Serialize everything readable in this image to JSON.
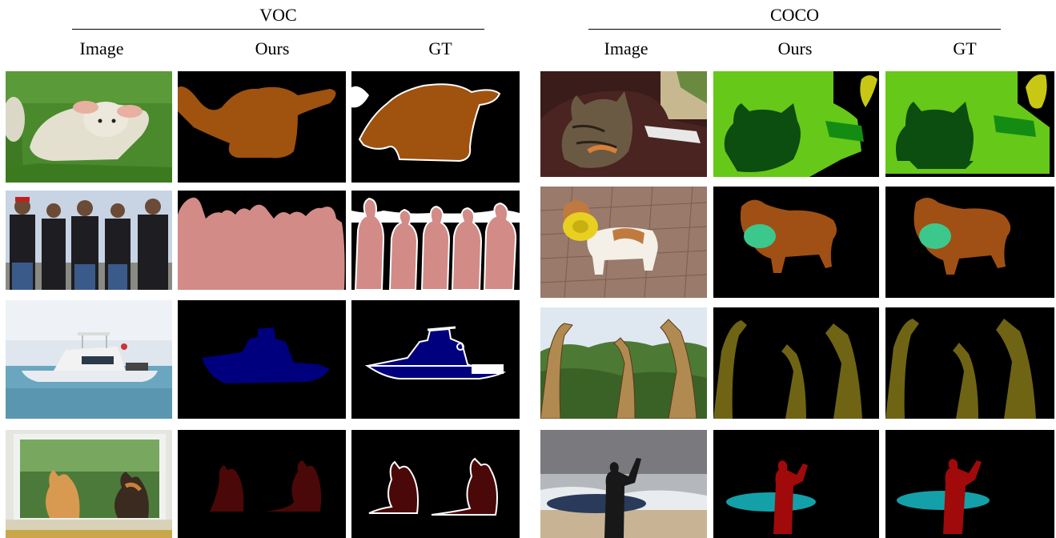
{
  "groups": {
    "voc": {
      "title": "VOC"
    },
    "coco": {
      "title": "COCO"
    }
  },
  "columns": {
    "image": "Image",
    "ours": "Ours",
    "gt": "GT"
  },
  "rows": {
    "voc": [
      "sheep",
      "people",
      "boat",
      "cats"
    ],
    "coco": [
      "cat-on-couch",
      "dog-with-frisbee",
      "giraffes",
      "surfer"
    ]
  },
  "colors": {
    "background": "#000000",
    "boundary": "#ffffff",
    "sheep": "#a0520f",
    "person_voc": "#d28b87",
    "boat": "#00007e",
    "cat_voc": "#4a0808",
    "couch": "#66c818",
    "cat_coco": "#0c4d10",
    "remote": "#148c14",
    "plant": "#c8c814",
    "dog": "#a05014",
    "frisbee": "#3cc88c",
    "giraffe": "#6e6414",
    "person_coco": "#a00a0a",
    "surfboard": "#14a0a8"
  }
}
